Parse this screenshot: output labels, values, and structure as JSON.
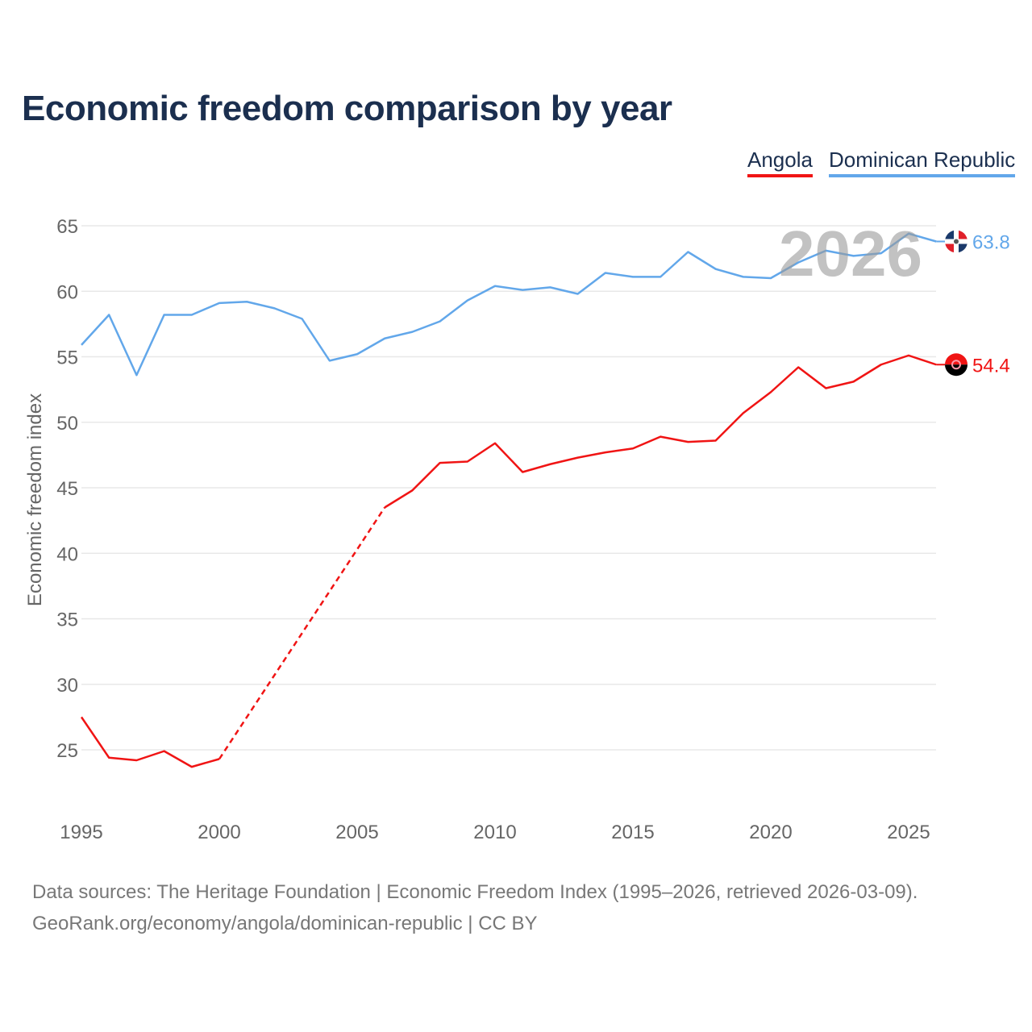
{
  "title": "Economic freedom comparison by year",
  "footer": {
    "line1": "Data sources: The Heritage Foundation | Economic Freedom Index (1995–2026, retrieved 2026-03-09).",
    "line2": "GeoRank.org/economy/angola/dominican-republic | CC BY"
  },
  "chart_data": {
    "type": "line",
    "title": "Economic freedom comparison by year",
    "xlabel": "",
    "ylabel": "Economic freedom index",
    "xlim": [
      1995,
      2026
    ],
    "ylim": [
      21,
      65
    ],
    "yticks": [
      25,
      30,
      35,
      40,
      45,
      50,
      55,
      60,
      65
    ],
    "xticks": [
      1995,
      2000,
      2005,
      2010,
      2015,
      2020,
      2025
    ],
    "grid": true,
    "legend_position": "top-right",
    "watermark_year": "2026",
    "x": [
      1995,
      1996,
      1997,
      1998,
      1999,
      2000,
      2001,
      2002,
      2003,
      2004,
      2005,
      2006,
      2007,
      2008,
      2009,
      2010,
      2011,
      2012,
      2013,
      2014,
      2015,
      2016,
      2017,
      2018,
      2019,
      2020,
      2021,
      2022,
      2023,
      2024,
      2025,
      2026
    ],
    "series": [
      {
        "name": "Angola",
        "color": "#f01414",
        "end_label": "54.4",
        "values": [
          27.5,
          24.4,
          24.2,
          24.9,
          23.7,
          24.3,
          null,
          null,
          null,
          null,
          null,
          43.5,
          44.8,
          46.9,
          47.0,
          48.4,
          46.2,
          46.8,
          47.3,
          47.7,
          48.0,
          48.9,
          48.5,
          48.6,
          50.7,
          52.3,
          54.2,
          52.6,
          53.1,
          54.4,
          55.1,
          54.4
        ]
      },
      {
        "name": "Dominican Republic",
        "color": "#62a7ea",
        "end_label": "63.8",
        "values": [
          55.9,
          58.2,
          53.6,
          58.2,
          58.2,
          59.1,
          59.2,
          58.7,
          57.9,
          54.7,
          55.2,
          56.4,
          56.9,
          57.7,
          59.3,
          60.4,
          60.1,
          60.3,
          59.8,
          61.4,
          61.1,
          61.1,
          63.0,
          61.7,
          61.1,
          61.0,
          62.2,
          63.1,
          62.7,
          62.9,
          64.4,
          63.8
        ]
      }
    ]
  }
}
